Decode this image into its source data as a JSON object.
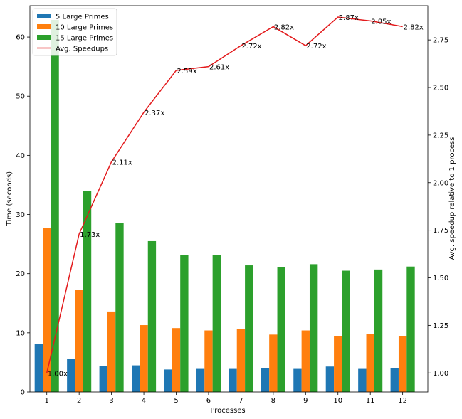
{
  "chart_data": {
    "type": "bar",
    "title": "",
    "xlabel": "Processes",
    "ylabel": "Time (seconds)",
    "y2label": "Avg. speedup relative to 1 process",
    "categories": [
      "1",
      "2",
      "3",
      "4",
      "5",
      "6",
      "7",
      "8",
      "9",
      "10",
      "11",
      "12"
    ],
    "ylim": [
      0,
      65.3
    ],
    "y2lim": [
      0.9,
      2.93
    ],
    "yticks": [
      0,
      10,
      20,
      30,
      40,
      50,
      60
    ],
    "y2ticks": [
      1.0,
      1.25,
      1.5,
      1.75,
      2.0,
      2.25,
      2.5,
      2.75
    ],
    "y2tick_labels": [
      "1.00",
      "1.25",
      "1.50",
      "1.75",
      "2.00",
      "2.25",
      "2.50",
      "2.75"
    ],
    "series": [
      {
        "name": "5 Large Primes",
        "color": "#1f77b4",
        "values": [
          8.1,
          5.6,
          4.4,
          4.5,
          3.8,
          3.9,
          3.9,
          4.0,
          3.9,
          4.3,
          3.9,
          4.0
        ]
      },
      {
        "name": "10 Large Primes",
        "color": "#ff7f0e",
        "values": [
          27.7,
          17.3,
          13.6,
          11.3,
          10.8,
          10.4,
          10.6,
          9.7,
          10.4,
          9.5,
          9.8,
          9.5
        ]
      },
      {
        "name": "15 Large Primes",
        "color": "#2ca02c",
        "values": [
          62.9,
          34.0,
          28.5,
          25.5,
          23.2,
          23.1,
          21.4,
          21.1,
          21.6,
          20.5,
          20.7,
          21.2
        ]
      }
    ],
    "line": {
      "name": "Avg. Speedups",
      "color": "#e31a1c",
      "values": [
        1.0,
        1.73,
        2.11,
        2.37,
        2.59,
        2.61,
        2.72,
        2.82,
        2.72,
        2.87,
        2.85,
        2.82
      ],
      "labels": [
        "1.00x",
        "1.73x",
        "2.11x",
        "2.37x",
        "2.59x",
        "2.61x",
        "2.72x",
        "2.82x",
        "2.72x",
        "2.87x",
        "2.85x",
        "2.82x"
      ]
    },
    "legend": {
      "placement": "top-left",
      "entries": [
        "5 Large Primes",
        "10 Large Primes",
        "15 Large Primes",
        "Avg. Speedups"
      ]
    },
    "grid": false
  }
}
